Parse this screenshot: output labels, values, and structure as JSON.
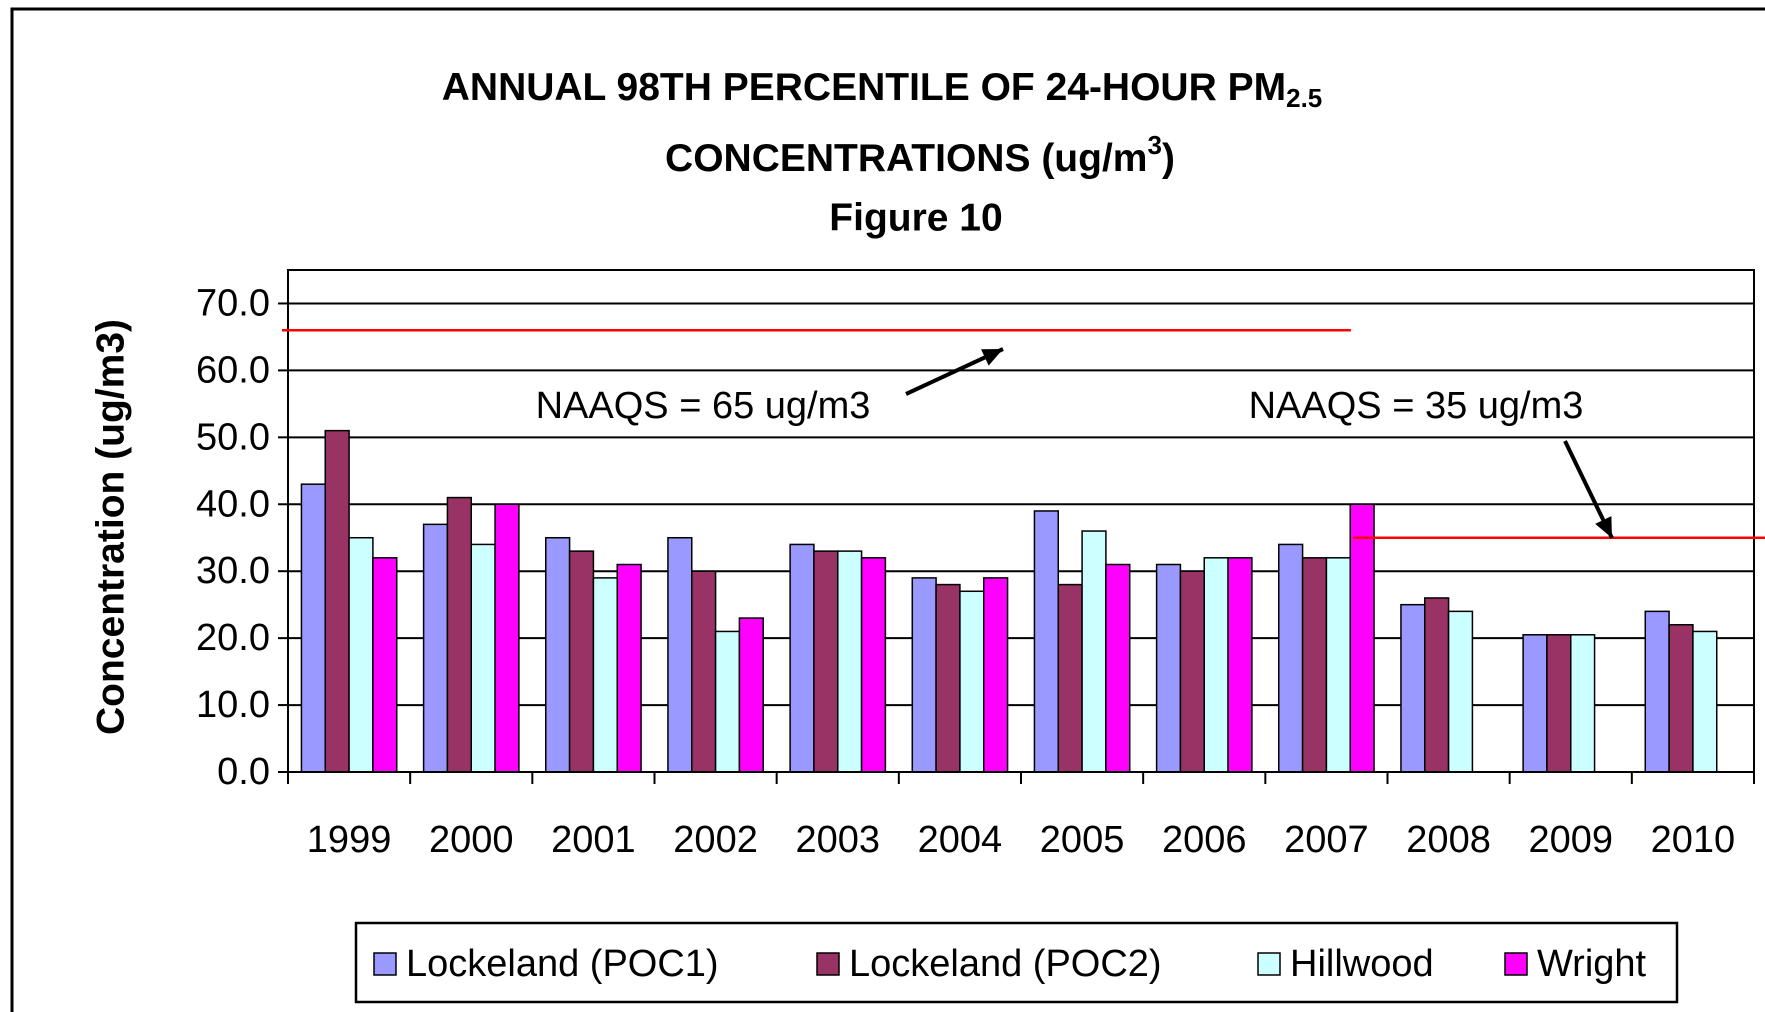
{
  "chart_data": {
    "type": "bar",
    "title_parts": [
      "ANNUAL 98TH PERCENTILE OF 24-HOUR PM",
      "2.5",
      "CONCENTRATIONS (ug/m",
      "3",
      ")"
    ],
    "subtitle": "Figure 10",
    "y_label": "Concentration (ug/m3)",
    "categories": [
      "1999",
      "2000",
      "2001",
      "2002",
      "2003",
      "2004",
      "2005",
      "2006",
      "2007",
      "2008",
      "2009",
      "2010"
    ],
    "series": [
      {
        "name": "Lockeland (POC1)",
        "color": "#9999ff",
        "values": [
          43,
          37,
          35,
          35,
          34,
          29,
          39,
          31,
          34,
          25,
          20.5,
          24
        ]
      },
      {
        "name": "Lockeland (POC2)",
        "color": "#993366",
        "values": [
          51,
          41,
          33,
          30,
          33,
          28,
          28,
          30,
          32,
          26,
          20.5,
          22
        ]
      },
      {
        "name": "Hillwood",
        "color": "#ccffff",
        "values": [
          35,
          34,
          29,
          21,
          33,
          27,
          36,
          32,
          32,
          24,
          20.5,
          21
        ]
      },
      {
        "name": "Wright",
        "color": "#ff00ff",
        "values": [
          32,
          40,
          31,
          23,
          32,
          29,
          31,
          32,
          40,
          null,
          null,
          null
        ]
      }
    ],
    "ylim": [
      0,
      75
    ],
    "yticks": [
      {
        "value": 0,
        "label": "0.0"
      },
      {
        "value": 10,
        "label": "10.0"
      },
      {
        "value": 20,
        "label": "20.0"
      },
      {
        "value": 30,
        "label": "30.0"
      },
      {
        "value": 40,
        "label": "40.0"
      },
      {
        "value": 50,
        "label": "50.0"
      },
      {
        "value": 60,
        "label": "60.0"
      },
      {
        "value": 70,
        "label": "70.0"
      }
    ],
    "grid": true,
    "reference_lines": [
      {
        "value": 66,
        "color": "#ff0000"
      },
      {
        "value": 35,
        "color": "#ff0000"
      }
    ],
    "annotations": [
      "NAAQS = 65 ug/m3",
      "NAAQS = 35 ug/m3"
    ],
    "legend": "bottom"
  }
}
